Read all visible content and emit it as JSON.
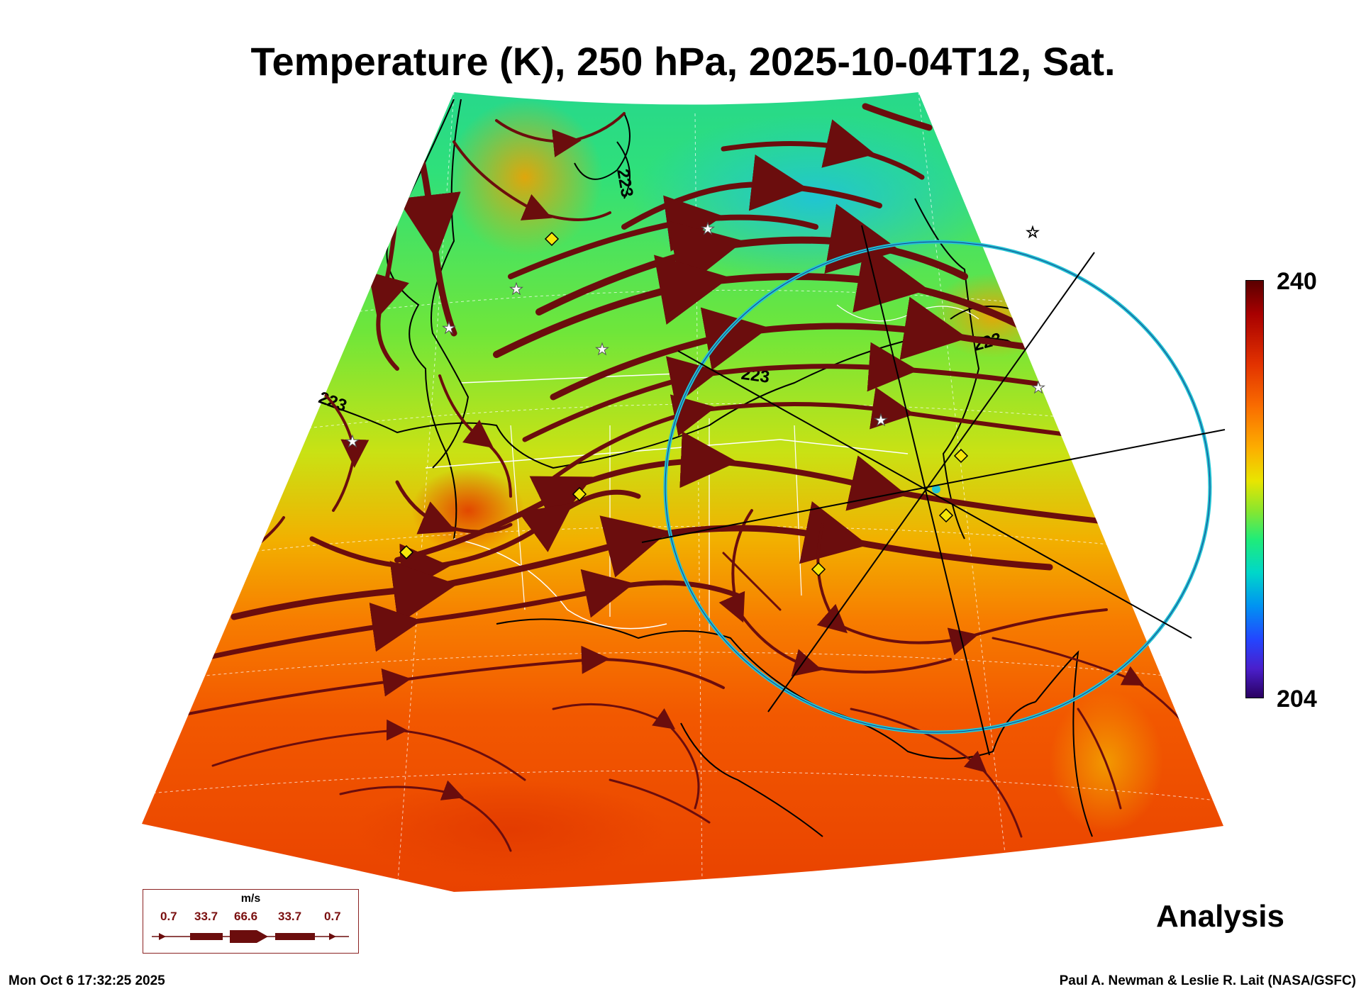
{
  "title": "Temperature (K), 250 hPa, 2025-10-04T12, Sat.",
  "colorbar": {
    "max": "240",
    "min": "204"
  },
  "contour_label": "223",
  "product_label": "Analysis",
  "wind_legend": {
    "unit": "m/s",
    "values": [
      "0.7",
      "33.7",
      "66.6",
      "33.7",
      "0.7"
    ]
  },
  "timestamp": "Mon Oct  6 17:32:25 2025",
  "credit": "Paul A. Newman & Leslie R. Lait (NASA/GSFC)",
  "colors": {
    "streamline": "#6b0d0d",
    "range_ring": "#22c3d3",
    "marker_diamond": "#f5e60a",
    "marker_star": "#ffffff"
  }
}
